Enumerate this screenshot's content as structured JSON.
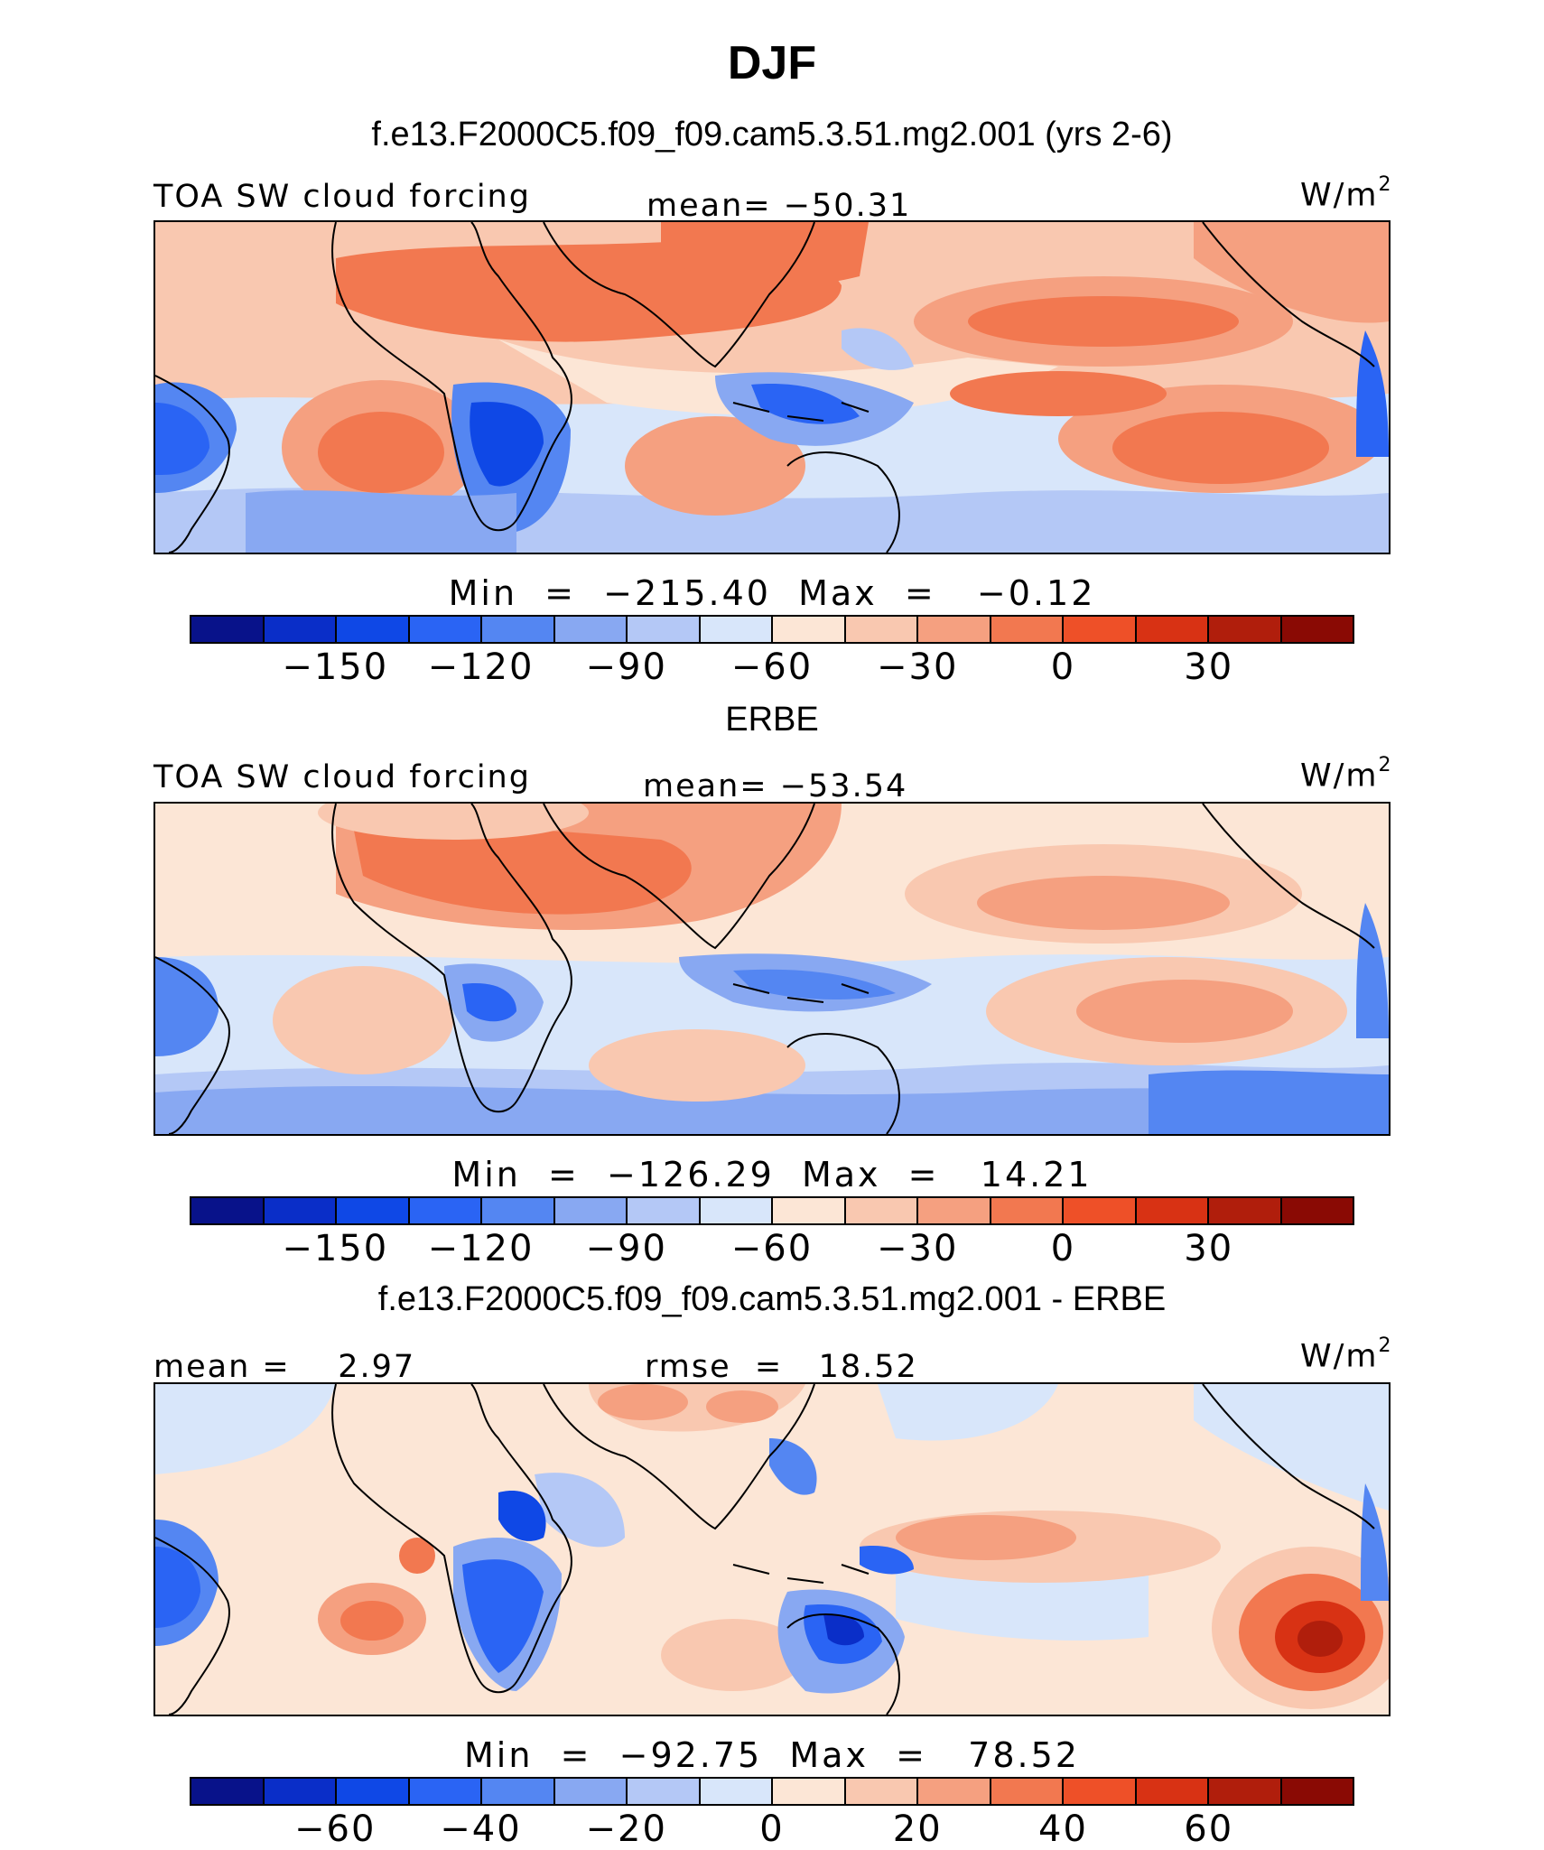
{
  "title": "DJF",
  "panel_sets": [
    {
      "section_title": "f.e13.F2000C5.f09_f09.cam5.3.51.mg2.001 (yrs 2-6)",
      "left_header": "TOA SW cloud forcing",
      "center_header": "mean= −50.31",
      "units": "W/m",
      "units_sup": "2",
      "min_max": "Min  =  −215.40  Max  =   −0.12",
      "colorbar_ticks": [
        "−150",
        "−120",
        "−90",
        "−60",
        "−30",
        "0",
        "30"
      ],
      "colorbar_colors": [
        "#08128a",
        "#0a2ec8",
        "#0f48e6",
        "#2a64f4",
        "#5486f2",
        "#88a8f2",
        "#b4c8f6",
        "#d8e6fa",
        "#fce6d6",
        "#f9c8b0",
        "#f5a080",
        "#f27850",
        "#ee5028",
        "#d83214",
        "#b01e0c",
        "#8a0a04"
      ]
    },
    {
      "section_title": "ERBE",
      "left_header": "TOA SW cloud forcing",
      "center_header": "mean= −53.54",
      "units": "W/m",
      "units_sup": "2",
      "min_max": "Min  =  −126.29  Max  =   14.21",
      "colorbar_ticks": [
        "−150",
        "−120",
        "−90",
        "−60",
        "−30",
        "0",
        "30"
      ],
      "colorbar_colors": [
        "#08128a",
        "#0a2ec8",
        "#0f48e6",
        "#2a64f4",
        "#5486f2",
        "#88a8f2",
        "#b4c8f6",
        "#d8e6fa",
        "#fce6d6",
        "#f9c8b0",
        "#f5a080",
        "#f27850",
        "#ee5028",
        "#d83214",
        "#b01e0c",
        "#8a0a04"
      ]
    },
    {
      "section_title": "f.e13.F2000C5.f09_f09.cam5.3.51.mg2.001 - ERBE",
      "left_header": "mean =    2.97",
      "center_header": "rmse  =   18.52",
      "units": "W/m",
      "units_sup": "2",
      "min_max": "Min  =  −92.75  Max  =   78.52",
      "colorbar_ticks": [
        "−60",
        "−40",
        "−20",
        "0",
        "20",
        "40",
        "60"
      ],
      "colorbar_colors": [
        "#08128a",
        "#0a2ec8",
        "#0f48e6",
        "#2a64f4",
        "#5486f2",
        "#88a8f2",
        "#b4c8f6",
        "#d8e6fa",
        "#fce6d6",
        "#f9c8b0",
        "#f5a080",
        "#f27850",
        "#ee5028",
        "#d83214",
        "#b01e0c",
        "#8a0a04"
      ]
    }
  ]
}
